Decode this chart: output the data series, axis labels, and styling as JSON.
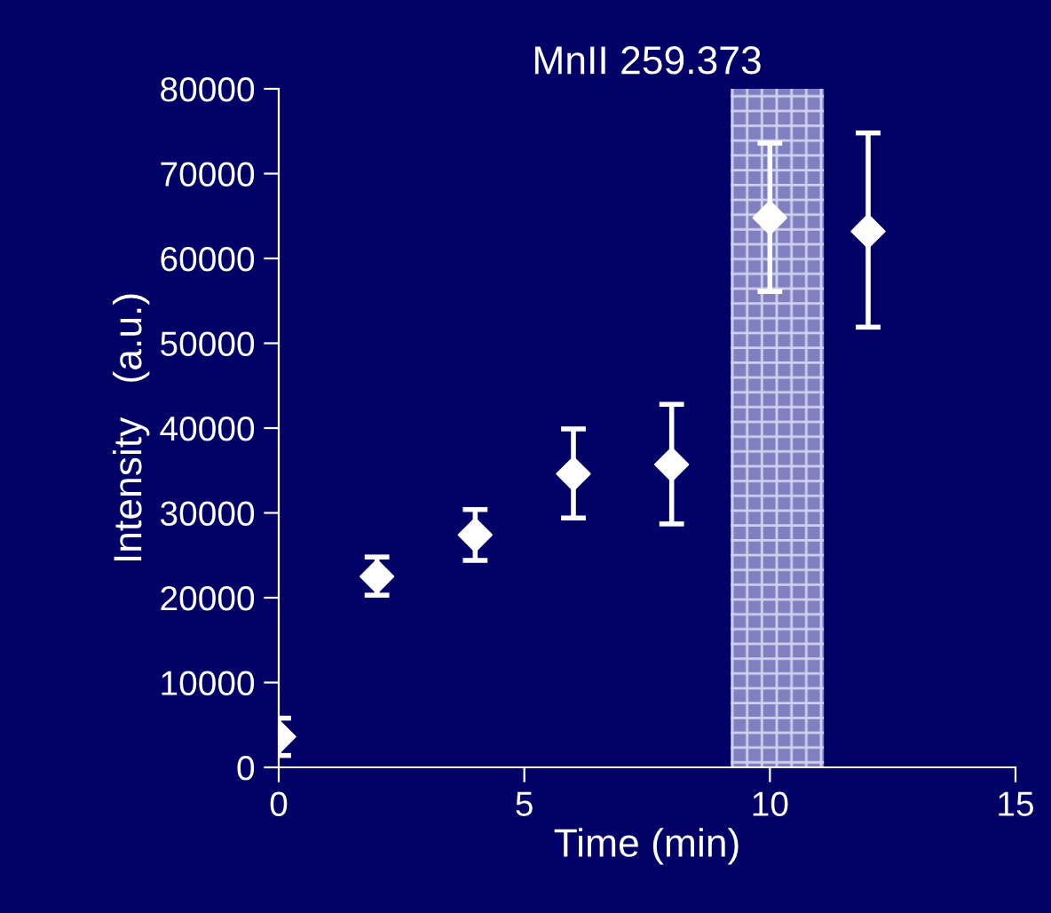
{
  "chart_data": {
    "type": "scatter",
    "title": "MnII 259.373",
    "xlabel": "Time (min)",
    "ylabel": "Intensity   (a.u.)",
    "x": [
      0,
      2,
      4,
      6,
      8,
      10,
      12
    ],
    "series": [
      {
        "color": "#ffffff",
        "values": [
          3600,
          22500,
          27400,
          34600,
          35700,
          64800,
          63200
        ],
        "errors": [
          [
            1400,
            5800
          ],
          [
            20300,
            24800
          ],
          [
            24400,
            30400
          ],
          [
            29400,
            39900
          ],
          [
            28700,
            42800
          ],
          [
            56100,
            73600
          ],
          [
            51900,
            74800
          ]
        ]
      }
    ],
    "xlim": [
      0,
      15
    ],
    "xticks": [
      0,
      5,
      10,
      15
    ],
    "ylim": [
      0,
      80000
    ],
    "yticks": [
      0,
      10000,
      20000,
      30000,
      40000,
      50000,
      60000,
      70000,
      80000
    ],
    "bands": [
      {
        "axis": "x",
        "from": 9.2,
        "to": 11.1,
        "color": "#8080c0"
      }
    ],
    "marker": "diamond",
    "grid": false,
    "legend": false
  }
}
